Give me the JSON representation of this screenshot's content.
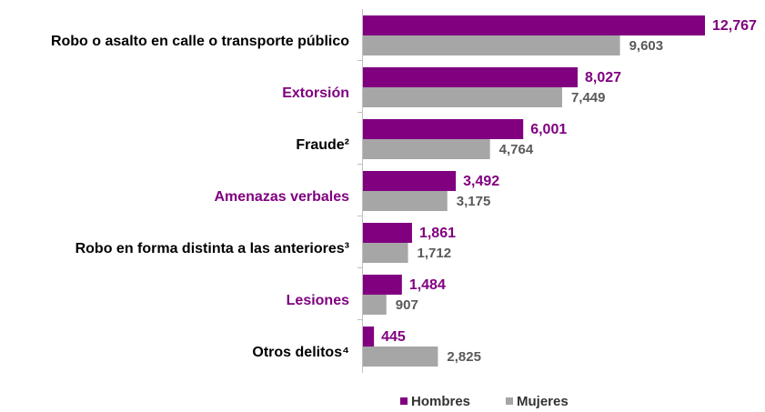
{
  "chart_data": {
    "type": "hbar",
    "categories": [
      "Robo o asalto en calle o transporte público",
      "Extorsión",
      "Fraude²",
      "Amenazas verbales",
      "Robo en forma distinta a las anteriores³",
      "Lesiones",
      "Otros delitos⁴"
    ],
    "category_colors": [
      "#000000",
      "#800080",
      "#000000",
      "#800080",
      "#000000",
      "#800080",
      "#000000"
    ],
    "series": [
      {
        "name": "Hombres",
        "color": "#800080",
        "label_color": "#800080",
        "values": [
          12767,
          8027,
          6001,
          3492,
          1861,
          1484,
          445
        ],
        "value_labels": [
          "12,767",
          "8,027",
          "6,001",
          "3,492",
          "1,861",
          "1,484",
          "445"
        ]
      },
      {
        "name": "Mujeres",
        "color": "#a6a6a6",
        "label_color": "#595959",
        "values": [
          9603,
          7449,
          4764,
          3175,
          1712,
          907,
          2825
        ],
        "value_labels": [
          "9,603",
          "7,449",
          "4,764",
          "3,175",
          "1,712",
          "907",
          "2,825"
        ]
      }
    ],
    "legend": "bottom"
  }
}
